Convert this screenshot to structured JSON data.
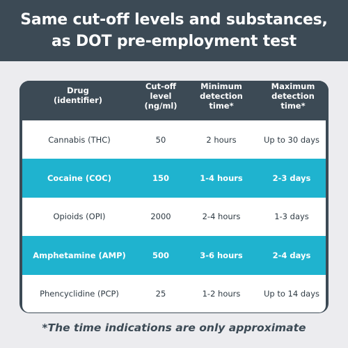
{
  "banner": {
    "line1": "Same cut-off levels and substances,",
    "line2": "as DOT pre-employment test"
  },
  "table": {
    "headers": [
      [
        "Drug",
        "(identifier)"
      ],
      [
        "Cut-off",
        "level",
        "(ng/ml)"
      ],
      [
        "Minimum",
        "detection",
        "time*"
      ],
      [
        "Maximum",
        "detection",
        "time*"
      ]
    ],
    "rows": [
      {
        "drug": "Cannabis (THC)",
        "cutoff": "50",
        "min": "2 hours",
        "max": "Up to 30 days",
        "style": "white"
      },
      {
        "drug": "Cocaine (COC)",
        "cutoff": "150",
        "min": "1-4 hours",
        "max": "2-3 days",
        "style": "teal"
      },
      {
        "drug": "Opioids (OPI)",
        "cutoff": "2000",
        "min": "2-4 hours",
        "max": "1-3 days",
        "style": "white"
      },
      {
        "drug": "Amphetamine (AMP)",
        "cutoff": "500",
        "min": "3-6 hours",
        "max": "2-4 days",
        "style": "teal"
      },
      {
        "drug": "Phencyclidine (PCP)",
        "cutoff": "25",
        "min": "1-2 hours",
        "max": "Up to 14 days",
        "style": "white"
      }
    ]
  },
  "footnote": "*The time indications are only approximate",
  "colors": {
    "dark": "#3c4a55",
    "teal": "#1fb3cf",
    "background": "#ececef"
  }
}
